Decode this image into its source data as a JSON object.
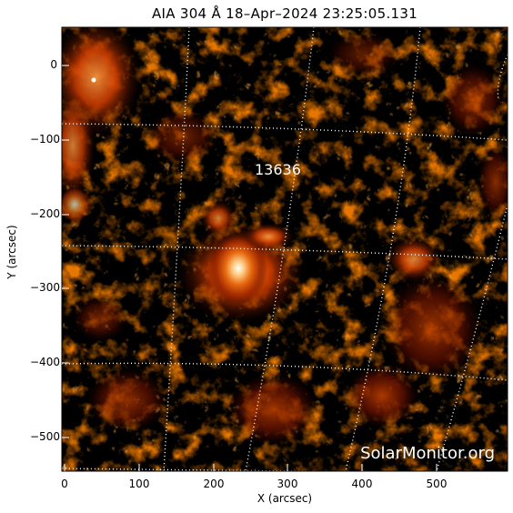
{
  "title": "AIA 304 Å 18–Apr–2024 23:25:05.131",
  "xlabel": "X (arcsec)",
  "ylabel": "Y (arcsec)",
  "x_ticks": [
    "0",
    "100",
    "200",
    "300",
    "400",
    "500"
  ],
  "y_ticks": [
    "0",
    "−100",
    "−200",
    "−300",
    "−400",
    "−500"
  ],
  "active_region": "13636",
  "watermark": "SolarMonitor.org",
  "colors": {
    "background": "#000000",
    "emission_low": "#5a0e00",
    "emission_mid": "#c83a00",
    "emission_high": "#ffb060",
    "emission_peak": "#ffffff",
    "grid": "#ffffff"
  }
}
